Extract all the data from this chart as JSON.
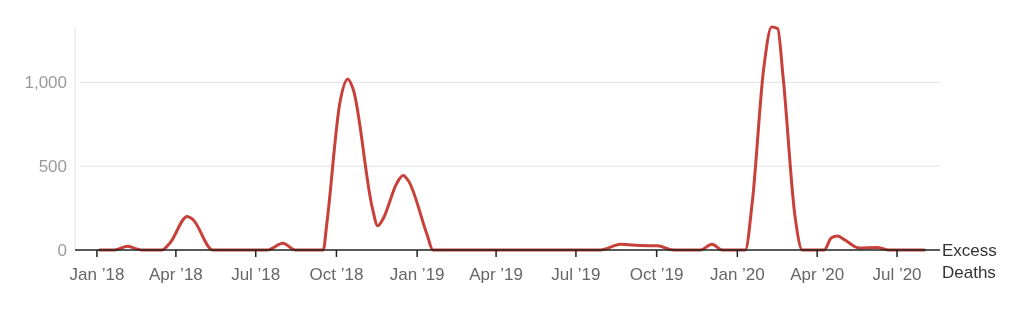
{
  "chart_data": {
    "type": "line",
    "ylabel": "Excess Deaths",
    "x": [
      "2018-01-04",
      "2018-01-21",
      "2018-02-05",
      "2018-02-13",
      "2018-02-21",
      "2018-03-16",
      "2018-03-25",
      "2018-04-14",
      "2018-04-20",
      "2018-05-13",
      "2018-07-14",
      "2018-08-01",
      "2018-08-15",
      "2018-09-16",
      "2018-09-20",
      "2018-10-05",
      "2018-10-14",
      "2018-10-20",
      "2018-11-11",
      "2018-11-17",
      "2018-11-23",
      "2018-12-09",
      "2018-12-16",
      "2018-12-22",
      "2019-01-12",
      "2019-01-19",
      "2019-07-29",
      "2019-08-21",
      "2019-09-12",
      "2019-10-02",
      "2019-10-20",
      "2019-11-20",
      "2019-12-03",
      "2019-12-15",
      "2020-01-10",
      "2020-01-18",
      "2020-01-31",
      "2020-02-09",
      "2020-02-16",
      "2020-02-22",
      "2020-03-07",
      "2020-03-15",
      "2020-04-09",
      "2020-04-17",
      "2020-04-24",
      "2020-05-02",
      "2020-05-19",
      "2020-06-08",
      "2020-06-22",
      "2020-08-01"
    ],
    "series": [
      {
        "color": "#c8403a",
        "values": [
          0,
          0,
          23,
          10,
          0,
          0,
          40,
          200,
          184,
          0,
          0,
          40,
          0,
          0,
          155,
          880,
          1020,
          960,
          250,
          144,
          184,
          400,
          444,
          413,
          97,
          0,
          0,
          34,
          27,
          25,
          0,
          0,
          34,
          0,
          0,
          285,
          1080,
          1330,
          1320,
          1040,
          190,
          0,
          0,
          71,
          83,
          62,
          12,
          15,
          0,
          0
        ]
      }
    ],
    "xlim": [
      "2017-12-07",
      "2020-08-19"
    ],
    "xticks": [
      {
        "value": "2018-01-01",
        "label": "Jan ’18"
      },
      {
        "value": "2018-04-01",
        "label": "Apr ’18"
      },
      {
        "value": "2018-07-01",
        "label": "Jul ’18"
      },
      {
        "value": "2018-10-01",
        "label": "Oct ’18"
      },
      {
        "value": "2019-01-01",
        "label": "Jan ’19"
      },
      {
        "value": "2019-04-01",
        "label": "Apr ’19"
      },
      {
        "value": "2019-07-01",
        "label": "Jul ’19"
      },
      {
        "value": "2019-10-01",
        "label": "Oct ’19"
      },
      {
        "value": "2020-01-01",
        "label": "Jan ’20"
      },
      {
        "value": "2020-04-01",
        "label": "Apr ’20"
      },
      {
        "value": "2020-07-01",
        "label": "Jul ’20"
      }
    ],
    "yticks": [
      0,
      500,
      {
        "value": 1000,
        "label": "1,000"
      }
    ],
    "ylim": [
      0,
      1330
    ],
    "grid": "y",
    "marker": "none",
    "line_style": "solid"
  }
}
